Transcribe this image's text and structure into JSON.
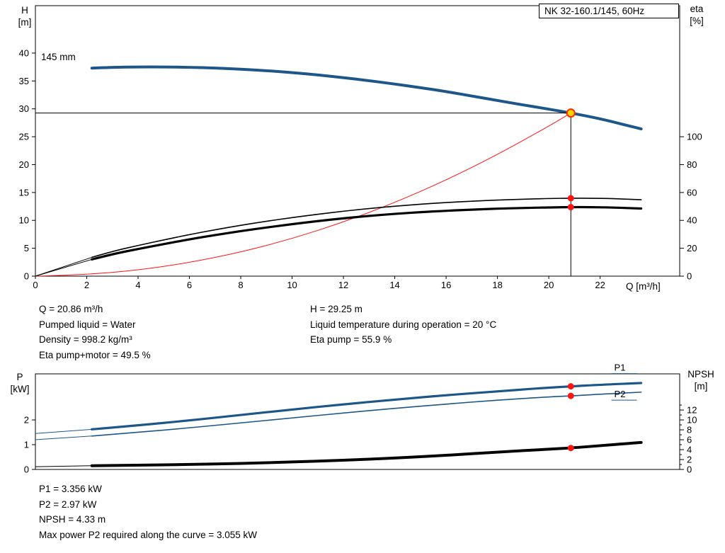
{
  "title_box": "NK 32-160.1/145, 60Hz",
  "impeller_label": "145 mm",
  "labels": {
    "h": [
      "H",
      "[m]"
    ],
    "eta": [
      "eta",
      "[%]"
    ],
    "p": [
      "P",
      "[kW]"
    ],
    "npsh": [
      "NPSH",
      "[m]"
    ],
    "q": "Q [m³/h]"
  },
  "info_top_left": [
    "Q = 20.86 m³/h",
    "Pumped liquid = Water",
    "Density = 998.2 kg/m³",
    "Eta pump+motor = 49.5 %"
  ],
  "info_top_right": [
    "H = 29.25 m",
    "Liquid temperature during operation = 20 °C",
    "Eta pump = 55.9 %"
  ],
  "info_bottom": [
    "P1 = 3.356 kW",
    "P2 = 2.97 kW",
    "NPSH = 4.33 m",
    "Max power P2 required along the curve = 3.055 kW"
  ],
  "colors": {
    "blue": "#1d5689",
    "red": "#ff1414",
    "black": "#000000",
    "duty_fill": "#ffd400",
    "duty_stroke": "#ff2a00"
  },
  "chart_data": [
    {
      "type": "line",
      "name": "head-capacity-chart",
      "title": "NK 32-160.1/145, 60Hz",
      "x": {
        "label": "Q [m³/h]",
        "min": 0,
        "max": 25.1,
        "ticks": [
          0,
          2,
          4,
          6,
          8,
          10,
          12,
          14,
          16,
          18,
          20,
          22
        ],
        "show_labels": true
      },
      "y_left": {
        "label": "H [m]",
        "min": 0,
        "max": 48.5,
        "ticks": [
          0,
          5,
          10,
          15,
          20,
          25,
          30,
          35,
          40
        ]
      },
      "y_right": {
        "label": "eta [%]",
        "min": 0,
        "max": 194,
        "ticks": [
          0,
          20,
          40,
          60,
          80,
          100
        ],
        "minor": []
      },
      "guides": {
        "q": 20.86,
        "v": 29.25
      },
      "series": [
        {
          "name": "system-curve",
          "color": "#ff1414",
          "width": 1,
          "axis": "left",
          "points": [
            [
              0,
              0
            ],
            [
              2,
              0.27
            ],
            [
              4,
              1.08
            ],
            [
              6,
              2.42
            ],
            [
              8,
              4.3
            ],
            [
              10,
              6.72
            ],
            [
              12,
              9.68
            ],
            [
              14,
              13.18
            ],
            [
              16,
              17.21
            ],
            [
              18,
              21.78
            ],
            [
              20,
              26.89
            ],
            [
              20.86,
              29.25
            ]
          ]
        },
        {
          "name": "eta-pump",
          "color": "#000000",
          "width": 1.6,
          "axis": "right",
          "lead": [
            [
              0,
              0
            ],
            [
              2.2,
              13.5
            ]
          ],
          "points": [
            [
              2.2,
              13.5
            ],
            [
              3,
              17.8
            ],
            [
              4,
              22
            ],
            [
              5,
              26
            ],
            [
              6,
              29.8
            ],
            [
              7,
              33.3
            ],
            [
              8,
              36.5
            ],
            [
              9,
              39.4
            ],
            [
              10,
              42
            ],
            [
              11,
              44.4
            ],
            [
              12,
              46.6
            ],
            [
              13,
              48.5
            ],
            [
              14,
              50.2
            ],
            [
              15,
              51.6
            ],
            [
              16,
              52.8
            ],
            [
              17,
              53.8
            ],
            [
              18,
              54.6
            ],
            [
              19,
              55.2
            ],
            [
              20,
              55.7
            ],
            [
              20.86,
              55.9
            ],
            [
              21.6,
              55.9
            ],
            [
              22.5,
              55.6
            ],
            [
              23.6,
              54.8
            ]
          ]
        },
        {
          "name": "eta-pump-motor",
          "color": "#000000",
          "width": 3.2,
          "axis": "right",
          "lead": [
            [
              0,
              0
            ],
            [
              2.2,
              12
            ]
          ],
          "points": [
            [
              2.2,
              12
            ],
            [
              3,
              15.8
            ],
            [
              4,
              19.5
            ],
            [
              5,
              23
            ],
            [
              6,
              26.4
            ],
            [
              7,
              29.5
            ],
            [
              8,
              32.3
            ],
            [
              9,
              34.9
            ],
            [
              10,
              37.3
            ],
            [
              11,
              39.5
            ],
            [
              12,
              41.5
            ],
            [
              13,
              43.2
            ],
            [
              14,
              44.7
            ],
            [
              15,
              45.9
            ],
            [
              16,
              46.9
            ],
            [
              17,
              47.7
            ],
            [
              18,
              48.4
            ],
            [
              19,
              48.9
            ],
            [
              20,
              49.3
            ],
            [
              20.86,
              49.5
            ],
            [
              21.6,
              49.5
            ],
            [
              22.5,
              49.2
            ],
            [
              23.6,
              48.5
            ]
          ]
        },
        {
          "name": "head-curve-145mm",
          "color": "#1d5689",
          "width": 4,
          "axis": "left",
          "points": [
            [
              2.2,
              37.3
            ],
            [
              3,
              37.45
            ],
            [
              4,
              37.52
            ],
            [
              5,
              37.52
            ],
            [
              6,
              37.45
            ],
            [
              7,
              37.32
            ],
            [
              8,
              37.12
            ],
            [
              9,
              36.85
            ],
            [
              10,
              36.5
            ],
            [
              11,
              36.08
            ],
            [
              12,
              35.6
            ],
            [
              13,
              35.05
            ],
            [
              14,
              34.45
            ],
            [
              15,
              33.8
            ],
            [
              16,
              33.1
            ],
            [
              17,
              32.3
            ],
            [
              18,
              31.5
            ],
            [
              19,
              30.7
            ],
            [
              20,
              29.95
            ],
            [
              20.86,
              29.25
            ],
            [
              21.5,
              28.7
            ],
            [
              22.2,
              28.0
            ],
            [
              23,
              27.1
            ],
            [
              23.6,
              26.4
            ]
          ]
        }
      ],
      "labels": [],
      "markers": [
        {
          "q": 20.86,
          "v": 55.9,
          "axis": "right",
          "type": "dot"
        },
        {
          "q": 20.86,
          "v": 49.5,
          "axis": "right",
          "type": "dot"
        },
        {
          "q": 20.86,
          "v": 29.25,
          "axis": "left",
          "type": "duty"
        }
      ]
    },
    {
      "type": "line",
      "name": "power-npsh-chart",
      "x": {
        "label": "",
        "min": 0,
        "max": 25.1,
        "ticks": [],
        "show_labels": false
      },
      "y_left": {
        "label": "P [kW]",
        "min": 0,
        "max": 3.86,
        "ticks": [
          0,
          1,
          2
        ]
      },
      "y_right": {
        "label": "NPSH [m]",
        "min": 0,
        "max": 19.3,
        "ticks": [
          0,
          2,
          4,
          6,
          8,
          10,
          12
        ],
        "minor": [
          1,
          3,
          5,
          7,
          9,
          11,
          13
        ]
      },
      "series": [
        {
          "name": "p1-power",
          "color": "#1d5689",
          "width": 3.2,
          "axis": "left",
          "lead": [
            [
              0,
              1.45
            ],
            [
              2.2,
              1.62
            ]
          ],
          "points": [
            [
              2.2,
              1.62
            ],
            [
              4,
              1.78
            ],
            [
              6,
              1.98
            ],
            [
              8,
              2.2
            ],
            [
              10,
              2.42
            ],
            [
              12,
              2.63
            ],
            [
              14,
              2.82
            ],
            [
              16,
              3.0
            ],
            [
              18,
              3.15
            ],
            [
              19.5,
              3.27
            ],
            [
              20.86,
              3.356
            ],
            [
              22,
              3.42
            ],
            [
              23.6,
              3.49
            ]
          ]
        },
        {
          "name": "p2-power",
          "color": "#1d5689",
          "width": 1.6,
          "axis": "left",
          "lead": [
            [
              0,
              1.2
            ],
            [
              2.2,
              1.35
            ]
          ],
          "points": [
            [
              2.2,
              1.35
            ],
            [
              4,
              1.5
            ],
            [
              6,
              1.68
            ],
            [
              8,
              1.88
            ],
            [
              10,
              2.08
            ],
            [
              12,
              2.28
            ],
            [
              14,
              2.47
            ],
            [
              16,
              2.64
            ],
            [
              18,
              2.8
            ],
            [
              20,
              2.93
            ],
            [
              20.86,
              2.97
            ],
            [
              22,
              3.04
            ],
            [
              23.6,
              3.12
            ]
          ]
        },
        {
          "name": "npsh-curve",
          "color": "#000000",
          "width": 4,
          "axis": "right",
          "lead": [
            [
              0,
              0.55
            ],
            [
              2.2,
              0.75
            ]
          ],
          "points": [
            [
              2.2,
              0.75
            ],
            [
              4,
              0.85
            ],
            [
              6,
              1.0
            ],
            [
              8,
              1.2
            ],
            [
              10,
              1.5
            ],
            [
              12,
              1.85
            ],
            [
              14,
              2.3
            ],
            [
              16,
              2.85
            ],
            [
              18,
              3.5
            ],
            [
              20,
              4.1
            ],
            [
              20.86,
              4.33
            ],
            [
              22,
              4.8
            ],
            [
              23.6,
              5.45
            ]
          ]
        }
      ],
      "labels": [
        {
          "text": "P1",
          "q": 22.55,
          "v": 3.356,
          "axis": "left",
          "dy": -22,
          "underline": true,
          "color": "#1d5689"
        },
        {
          "text": "P2",
          "q": 22.55,
          "v": 2.97,
          "axis": "left",
          "dy": 2,
          "underline": true,
          "color": "#1d5689"
        }
      ],
      "markers": [
        {
          "q": 20.86,
          "v": 3.356,
          "axis": "left",
          "type": "dot"
        },
        {
          "q": 20.86,
          "v": 2.97,
          "axis": "left",
          "type": "dot"
        },
        {
          "q": 20.86,
          "v": 4.33,
          "axis": "right",
          "type": "dot"
        }
      ]
    }
  ]
}
